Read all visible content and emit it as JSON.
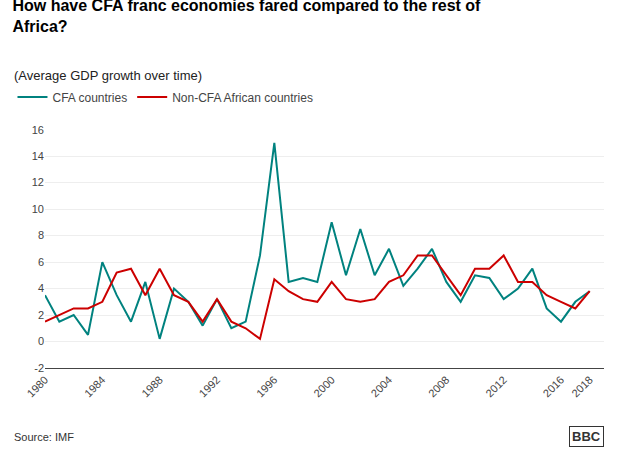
{
  "chart_data": {
    "type": "line",
    "title": "How have CFA franc economies fared compared to the rest of\nAfrica?",
    "subtitle": "(Average GDP growth over time)",
    "annotations": [
      "Source: IMF",
      "BBC"
    ],
    "x": [
      1980,
      1981,
      1982,
      1983,
      1984,
      1985,
      1986,
      1987,
      1988,
      1989,
      1990,
      1991,
      1992,
      1993,
      1994,
      1995,
      1996,
      1997,
      1998,
      1999,
      2000,
      2001,
      2002,
      2003,
      2004,
      2005,
      2006,
      2007,
      2008,
      2009,
      2010,
      2011,
      2012,
      2013,
      2014,
      2015,
      2016,
      2017,
      2018
    ],
    "series": [
      {
        "name": "CFA countries",
        "color": "#00827F",
        "values": [
          3.5,
          1.5,
          2.0,
          0.5,
          6.0,
          3.5,
          1.5,
          4.5,
          0.2,
          4.0,
          3.0,
          1.2,
          3.2,
          1.0,
          1.5,
          6.5,
          15.0,
          4.5,
          4.8,
          4.5,
          9.0,
          5.0,
          8.5,
          5.0,
          7.0,
          4.2,
          5.5,
          7.0,
          4.5,
          3.0,
          5.0,
          4.8,
          3.2,
          4.0,
          5.5,
          2.5,
          1.5,
          3.0,
          3.8
        ]
      },
      {
        "name": "Non-CFA African countries",
        "color": "#CC0000",
        "values": [
          1.5,
          2.0,
          2.5,
          2.5,
          3.0,
          5.2,
          5.5,
          3.5,
          5.5,
          3.5,
          3.0,
          1.5,
          3.2,
          1.5,
          1.0,
          0.2,
          4.7,
          3.8,
          3.2,
          3.0,
          4.5,
          3.2,
          3.0,
          3.2,
          4.5,
          5.0,
          6.5,
          6.5,
          5.0,
          3.5,
          5.5,
          5.5,
          6.5,
          4.5,
          4.5,
          3.5,
          3.0,
          2.5,
          3.8
        ]
      }
    ],
    "xlim": [
      1980,
      2019
    ],
    "xticks": [
      1980,
      1984,
      1988,
      1992,
      1996,
      2000,
      2004,
      2008,
      2012,
      2016,
      2018
    ],
    "ylim": [
      -2,
      16
    ],
    "yticks": [
      -2,
      0,
      2,
      4,
      6,
      8,
      10,
      12,
      14,
      16
    ],
    "grid": true,
    "legend": "upper left"
  }
}
